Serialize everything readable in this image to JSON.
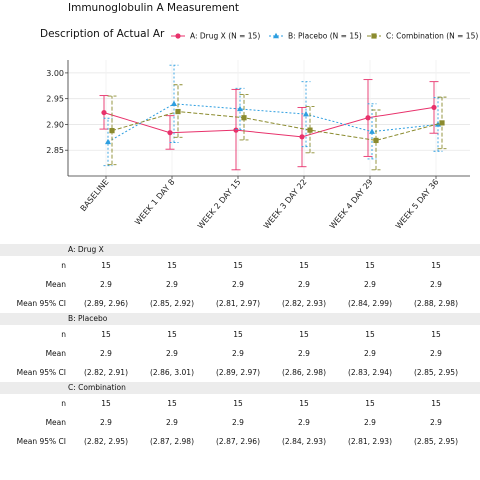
{
  "title": "Immunoglobulin A Measurement",
  "subtitle": "Description of Actual Ar",
  "chart_data": {
    "type": "line",
    "x_categories": [
      "BASELINE",
      "WEEK 1 DAY 8",
      "WEEK 2 DAY 15",
      "WEEK 3 DAY 22",
      "WEEK 4 DAY 29",
      "WEEK 5 DAY 36"
    ],
    "ylim": [
      2.8,
      3.025
    ],
    "y_ticks": [
      2.85,
      2.9,
      2.95,
      3.0
    ],
    "y_tick_labels": [
      "2.85",
      "2.90",
      "2.95",
      "3.00"
    ],
    "grid": true,
    "legend_position": "top",
    "series": [
      {
        "name": "A: Drug X (N = 15)",
        "color": "#e8316b",
        "marker": "circle",
        "dash": "",
        "mean": [
          2.923,
          2.884,
          2.889,
          2.876,
          2.913,
          2.933
        ],
        "lower": [
          2.891,
          2.852,
          2.812,
          2.818,
          2.838,
          2.883
        ],
        "upper": [
          2.956,
          2.917,
          2.968,
          2.933,
          2.987,
          2.983
        ]
      },
      {
        "name": "B: Placebo (N = 15)",
        "color": "#2d9ee0",
        "marker": "triangle",
        "dash": "2,2",
        "mean": [
          2.866,
          2.94,
          2.93,
          2.92,
          2.886,
          2.9
        ],
        "lower": [
          2.82,
          2.865,
          2.89,
          2.857,
          2.833,
          2.848
        ],
        "upper": [
          2.912,
          3.015,
          2.97,
          2.983,
          2.94,
          2.952
        ]
      },
      {
        "name": "C: Combination (N = 15)",
        "color": "#8b8b2e",
        "marker": "square",
        "dash": "4,2",
        "mean": [
          2.888,
          2.925,
          2.913,
          2.889,
          2.869,
          2.903
        ],
        "lower": [
          2.822,
          2.875,
          2.87,
          2.845,
          2.812,
          2.853
        ],
        "upper": [
          2.955,
          2.977,
          2.958,
          2.935,
          2.928,
          2.953
        ]
      }
    ]
  },
  "table": {
    "row_labels": [
      "n",
      "Mean",
      "Mean 95% CI"
    ],
    "groups": [
      {
        "header": "A: Drug X",
        "n": [
          "15",
          "15",
          "15",
          "15",
          "15",
          "15"
        ],
        "mean": [
          "2.9",
          "2.9",
          "2.9",
          "2.9",
          "2.9",
          "2.9"
        ],
        "ci": [
          "(2.89, 2.96)",
          "(2.85, 2.92)",
          "(2.81, 2.97)",
          "(2.82, 2.93)",
          "(2.84, 2.99)",
          "(2.88, 2.98)"
        ]
      },
      {
        "header": "B: Placebo",
        "n": [
          "15",
          "15",
          "15",
          "15",
          "15",
          "15"
        ],
        "mean": [
          "2.9",
          "2.9",
          "2.9",
          "2.9",
          "2.9",
          "2.9"
        ],
        "ci": [
          "(2.82, 2.91)",
          "(2.86, 3.01)",
          "(2.89, 2.97)",
          "(2.86, 2.98)",
          "(2.83, 2.94)",
          "(2.85, 2.95)"
        ]
      },
      {
        "header": "C: Combination",
        "n": [
          "15",
          "15",
          "15",
          "15",
          "15",
          "15"
        ],
        "mean": [
          "2.9",
          "2.9",
          "2.9",
          "2.9",
          "2.9",
          "2.9"
        ],
        "ci": [
          "(2.82, 2.95)",
          "(2.87, 2.98)",
          "(2.87, 2.96)",
          "(2.84, 2.93)",
          "(2.81, 2.93)",
          "(2.85, 2.95)"
        ]
      }
    ]
  }
}
